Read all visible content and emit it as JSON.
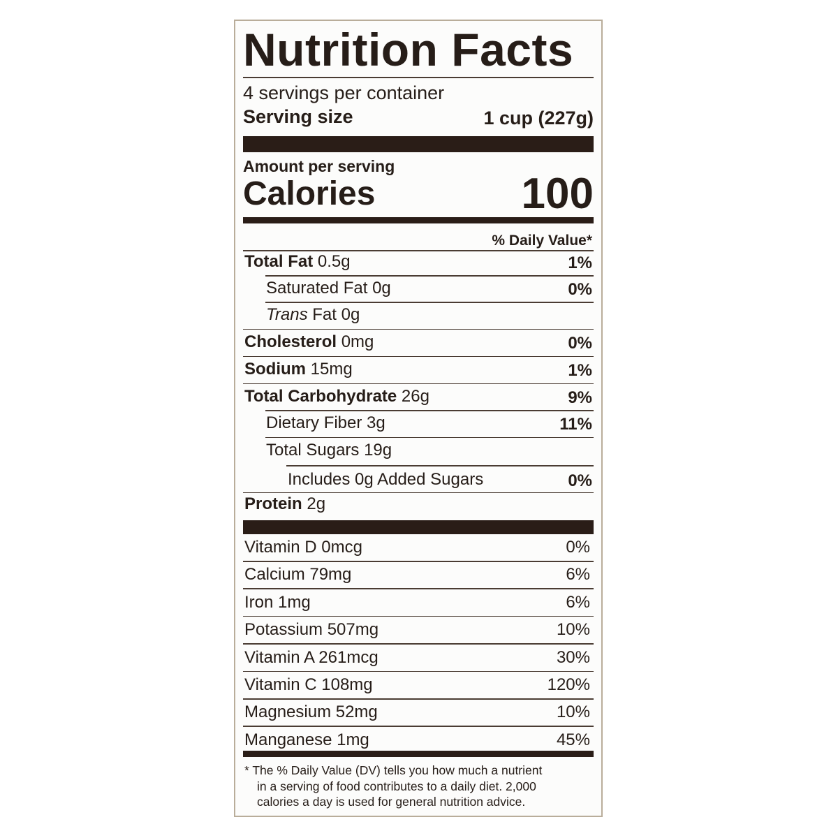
{
  "header": {
    "title": "Nutrition Facts",
    "servings": "4 servings per container",
    "serving_size_label": "Serving size",
    "serving_size_value": "1 cup (227g)"
  },
  "calories": {
    "amount_per_serving": "Amount per serving",
    "label": "Calories",
    "value": "100"
  },
  "dv_header": "% Daily Value*",
  "nutrients": [
    {
      "name": "Total Fat",
      "amount": "0.5g",
      "dv": "1%"
    },
    {
      "label": "Saturated Fat 0g",
      "dv": "0%"
    },
    {
      "italic": "Trans",
      "label": "Fat 0g"
    },
    {
      "name": "Cholesterol",
      "amount": "0mg",
      "dv": "0%"
    },
    {
      "name": "Sodium",
      "amount": "15mg",
      "dv": "1%"
    },
    {
      "name": "Total Carbohydrate",
      "amount": "26g",
      "dv": "9%"
    },
    {
      "label": "Dietary Fiber 3g",
      "dv": "11%"
    },
    {
      "label": "Total Sugars 19g"
    },
    {
      "label": "Includes 0g Added Sugars",
      "dv": "0%"
    },
    {
      "name": "Protein",
      "amount": "2g"
    }
  ],
  "vitamins": [
    {
      "label": "Vitamin D 0mcg",
      "dv": "0%"
    },
    {
      "label": "Calcium 79mg",
      "dv": "6%"
    },
    {
      "label": "Iron 1mg",
      "dv": "6%"
    },
    {
      "label": "Potassium 507mg",
      "dv": "10%"
    },
    {
      "label": "Vitamin A 261mcg",
      "dv": "30%"
    },
    {
      "label": "Vitamin C 108mg",
      "dv": "120%"
    },
    {
      "label": "Magnesium 52mg",
      "dv": "10%"
    },
    {
      "label": "Manganese 1mg",
      "dv": "45%"
    }
  ],
  "footnote": [
    "* The % Daily Value (DV) tells you how much a nutrient",
    "in a serving of food contributes to a daily diet. 2,000",
    "calories a day is used for general nutrition advice."
  ]
}
